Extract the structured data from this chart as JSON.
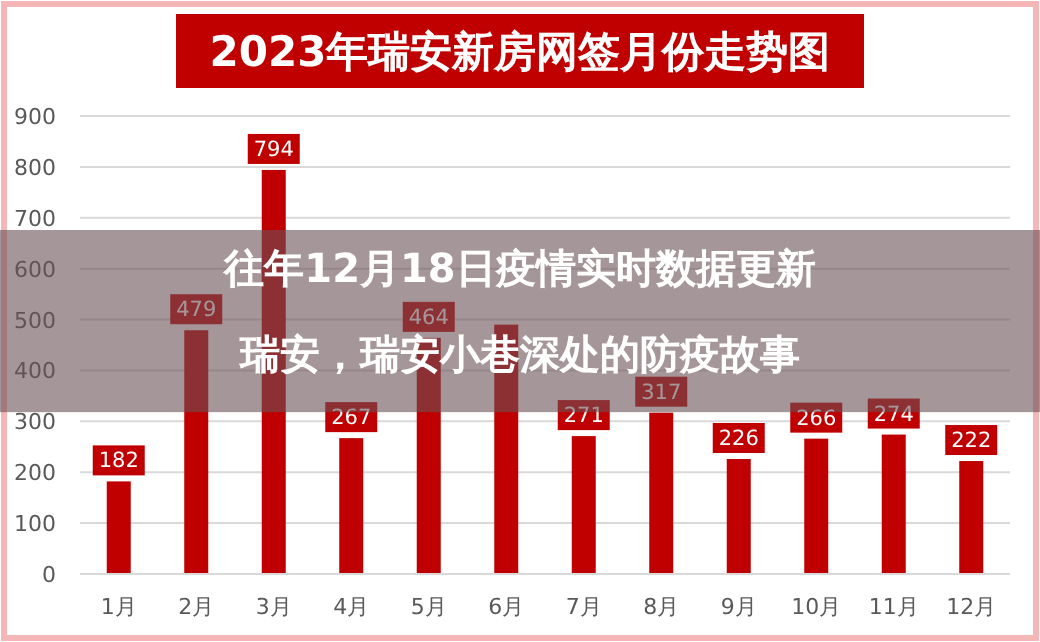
{
  "chart_data": {
    "type": "bar",
    "title": "2023年瑞安新房网签月份走势图",
    "categories": [
      "1月",
      "2月",
      "3月",
      "4月",
      "5月",
      "6月",
      "7月",
      "8月",
      "9月",
      "10月",
      "11月",
      "12月"
    ],
    "values": [
      182,
      479,
      794,
      267,
      464,
      490,
      271,
      317,
      226,
      266,
      274,
      222
    ],
    "value_labels": [
      "182",
      "479",
      "794",
      "267",
      "464",
      null,
      "271",
      "317",
      "226",
      "266",
      "274",
      "222"
    ],
    "color": "#c00000",
    "bands": [
      {
        "axis": "y",
        "from": 318,
        "to": 676,
        "color": "#695055"
      }
    ],
    "ylim": [
      0,
      900
    ],
    "yticks": [
      0,
      100,
      200,
      300,
      400,
      500,
      600,
      700,
      800,
      900
    ],
    "grid": "y",
    "annotations": [
      "往年12月18日疫情实时数据更新",
      "瑞安，瑞安小巷深处的防疫故事"
    ]
  }
}
